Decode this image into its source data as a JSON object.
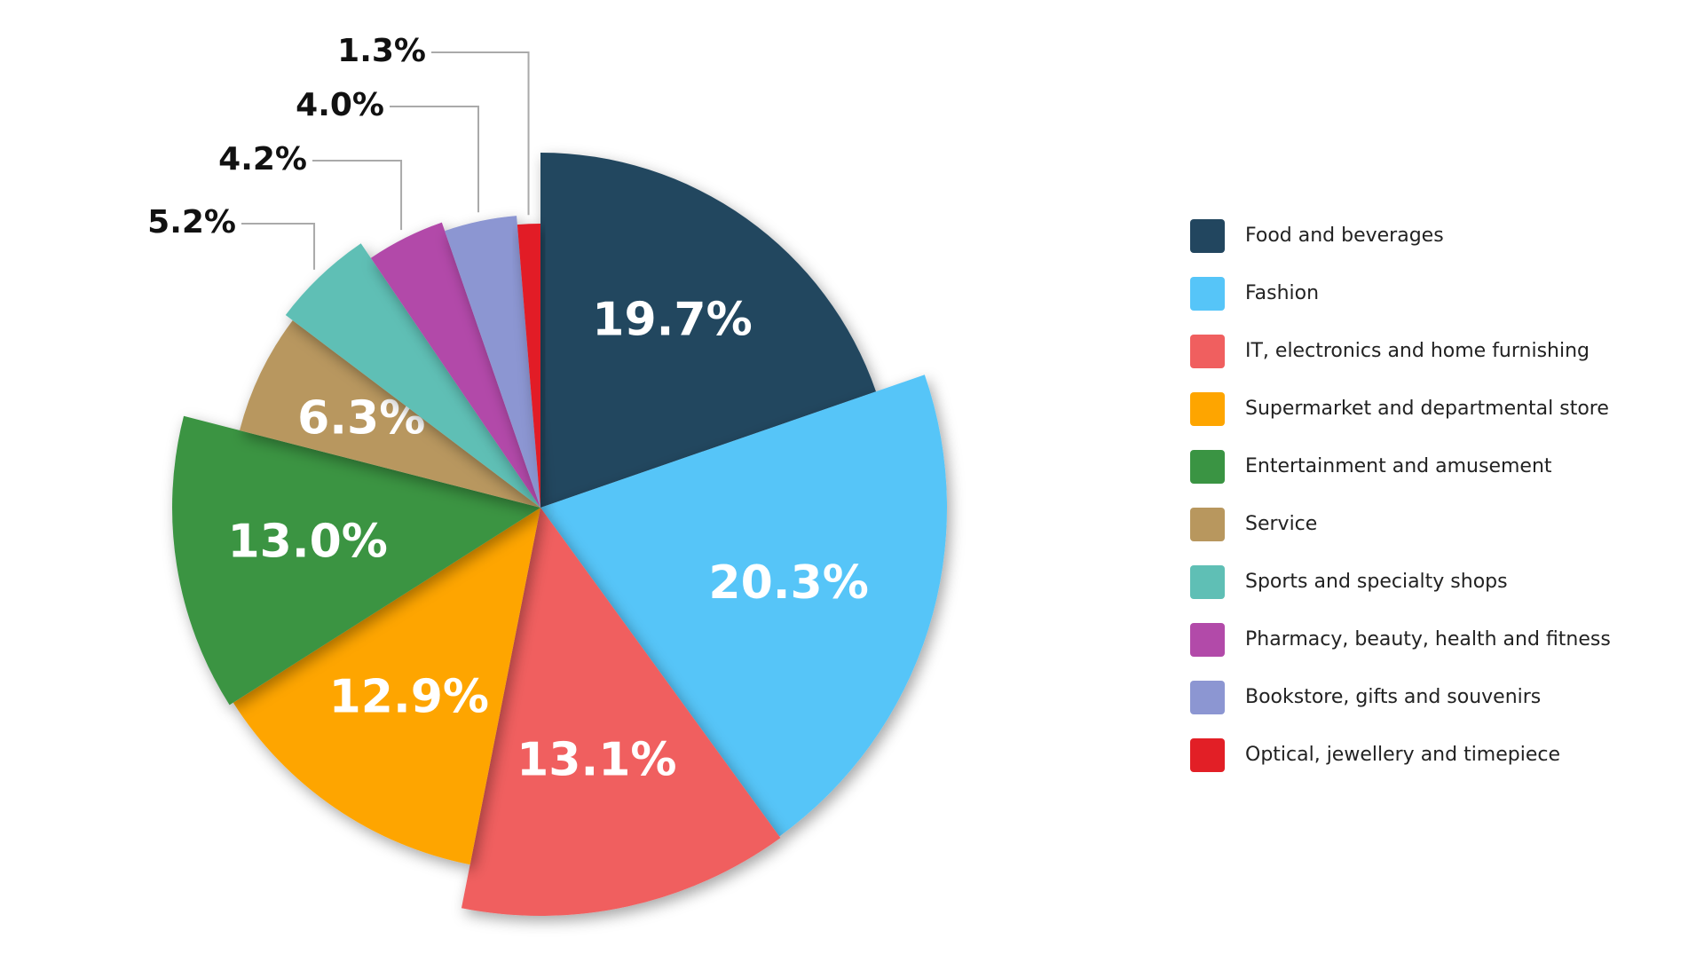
{
  "chart_data": {
    "type": "pie",
    "categories": [
      "Food and beverages",
      "Fashion",
      "IT, electronics and home furnishing",
      "Supermarket and departmental store",
      "Entertainment and amusement",
      "Service",
      "Sports and specialty shops",
      "Pharmacy, beauty, health and fitness",
      "Bookstore, gifts and souvenirs",
      "Optical, jewellery and timepiece"
    ],
    "values": [
      19.7,
      20.3,
      13.1,
      12.9,
      13.0,
      6.3,
      5.2,
      4.2,
      4.0,
      1.3
    ],
    "value_labels": [
      "19.7%",
      "20.3%",
      "13.1%",
      "12.9%",
      "13.0%",
      "6.3%",
      "5.2%",
      "4.2%",
      "4.0%",
      "1.3%"
    ],
    "colors": [
      "#22465f",
      "#56c5f8",
      "#f05f5f",
      "#fea500",
      "#3a9443",
      "#b8975e",
      "#5fbfb5",
      "#b24aa9",
      "#8c96d2",
      "#e21f26"
    ],
    "legend": "right"
  }
}
